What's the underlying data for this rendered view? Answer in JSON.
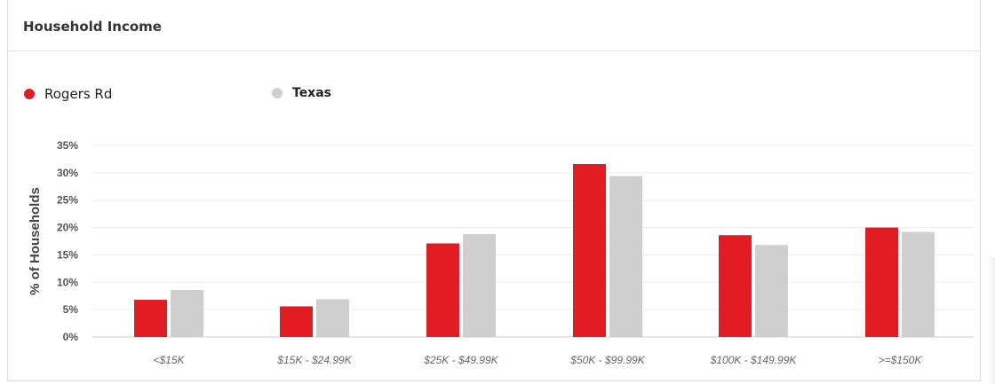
{
  "card": {
    "title": "Household Income"
  },
  "legend": [
    {
      "label": "Rogers Rd",
      "color": "#e31c24",
      "bold": false
    },
    {
      "label": "Texas",
      "color": "#cfcfcf",
      "bold": true
    }
  ],
  "chart_data": {
    "type": "bar",
    "title": "",
    "ylabel": "% of Households",
    "xlabel": "",
    "ylim": [
      0,
      35
    ],
    "yticks": [
      "0%",
      "5%",
      "10%",
      "15%",
      "20%",
      "25%",
      "30%",
      "35%"
    ],
    "ytick_values": [
      0,
      5,
      10,
      15,
      20,
      25,
      30,
      35
    ],
    "categories": [
      "<$15K",
      "$15K - $24.99K",
      "$25K - $49.99K",
      "$50K - $99.99K",
      "$100K - $149.99K",
      ">=$150K"
    ],
    "series": [
      {
        "name": "Rogers Rd",
        "color": "#e31c24",
        "values": [
          6.8,
          5.6,
          17.1,
          31.6,
          18.6,
          20.0
        ]
      },
      {
        "name": "Texas",
        "color": "#cfcfcf",
        "values": [
          8.6,
          6.9,
          18.8,
          29.4,
          16.8,
          19.2
        ]
      }
    ],
    "grid": true,
    "legend_position": "top-left"
  }
}
